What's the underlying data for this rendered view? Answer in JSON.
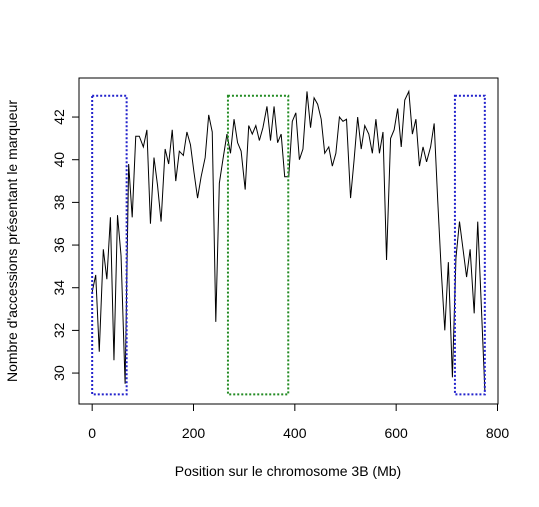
{
  "chart_data": {
    "type": "line",
    "xlabel": "Position sur le chromosome 3B (Mb)",
    "ylabel": "Nombre d'accessions présentant le marqueur",
    "x": [
      0,
      7,
      14,
      22,
      29,
      36,
      43,
      50,
      57,
      65,
      72,
      79,
      86,
      93,
      101,
      108,
      115,
      122,
      129,
      136,
      144,
      151,
      158,
      165,
      172,
      180,
      187,
      194,
      201,
      208,
      215,
      223,
      230,
      237,
      244,
      251,
      258,
      266,
      273,
      280,
      287,
      294,
      302,
      309,
      316,
      323,
      330,
      337,
      345,
      352,
      359,
      366,
      373,
      380,
      388,
      395,
      402,
      409,
      416,
      424,
      431,
      438,
      445,
      452,
      459,
      467,
      474,
      481,
      488,
      495,
      502,
      510,
      517,
      524,
      531,
      538,
      546,
      553,
      560,
      567,
      574,
      581,
      589,
      596,
      603,
      610,
      617,
      625,
      632,
      639,
      646,
      653,
      660,
      668,
      675,
      682,
      689,
      696,
      703,
      711,
      718,
      725,
      732,
      739,
      746,
      754,
      761,
      768,
      775
    ],
    "series": [
      {
        "color": "#000000",
        "values": [
          33.8,
          34.6,
          31.0,
          35.8,
          34.4,
          37.3,
          30.6,
          37.4,
          35.5,
          29.5,
          39.8,
          37.3,
          41.1,
          41.1,
          40.6,
          41.4,
          37.0,
          40.1,
          38.8,
          37.1,
          40.5,
          39.8,
          41.4,
          39.0,
          40.4,
          40.2,
          41.3,
          40.7,
          39.4,
          38.2,
          39.2,
          40.1,
          42.1,
          41.3,
          32.4,
          38.9,
          40.0,
          41.2,
          40.3,
          41.9,
          40.8,
          40.4,
          38.6,
          41.6,
          41.2,
          41.6,
          40.9,
          41.5,
          42.5,
          40.9,
          42.5,
          40.8,
          41.2,
          39.2,
          39.2,
          41.8,
          42.2,
          40.0,
          40.5,
          43.2,
          41.5,
          42.9,
          42.6,
          41.9,
          40.3,
          40.6,
          39.7,
          40.3,
          42.0,
          41.8,
          41.9,
          38.2,
          40.0,
          42.0,
          40.5,
          41.6,
          41.2,
          40.3,
          41.9,
          40.3,
          41.3,
          35.3,
          41.0,
          41.4,
          42.4,
          40.6,
          42.8,
          43.2,
          41.2,
          41.9,
          39.7,
          40.6,
          39.9,
          40.6,
          41.7,
          38.1,
          34.8,
          32.0,
          35.2,
          29.8,
          35.4,
          37.1,
          35.8,
          34.5,
          35.8,
          32.8,
          37.1,
          33.2,
          29.2
        ]
      }
    ],
    "rectangles": [
      {
        "x": [
          0,
          68
        ],
        "y": [
          29,
          43
        ],
        "color": "#2222cc"
      },
      {
        "x": [
          268,
          387
        ],
        "y": [
          29,
          43
        ],
        "color": "#228b22"
      },
      {
        "x": [
          716,
          775
        ],
        "y": [
          29,
          43
        ],
        "color": "#2222cc"
      }
    ],
    "xlim": [
      -26,
      801
    ],
    "ylim": [
      28.55,
      43.83
    ],
    "xticks": [
      0,
      200,
      400,
      600,
      800
    ],
    "yticks": [
      30,
      32,
      34,
      36,
      38,
      40,
      42
    ]
  }
}
